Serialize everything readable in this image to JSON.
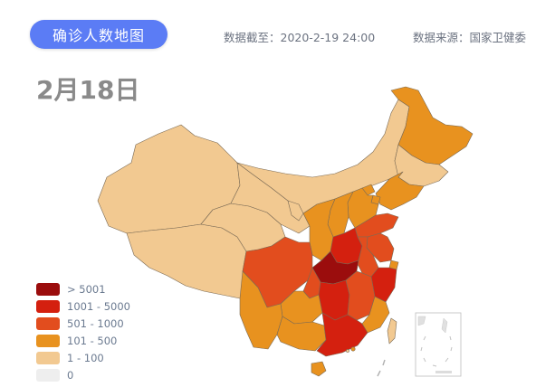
{
  "header": {
    "title": "确诊人数地图",
    "data_date": "数据截至：2020-2-19 24:00",
    "source": "数据来源：国家卫健委"
  },
  "map": {
    "date_label": "2月18日"
  },
  "legend": [
    {
      "label": "> 5001",
      "color": "#9b0d0d"
    },
    {
      "label": "1001 - 5000",
      "color": "#d4200f"
    },
    {
      "label": "501 - 1000",
      "color": "#e24d1e"
    },
    {
      "label": "101 - 500",
      "color": "#e8921f"
    },
    {
      "label": "1 - 100",
      "color": "#f2c991"
    },
    {
      "label": "0",
      "color": "#eeeeee"
    }
  ]
}
